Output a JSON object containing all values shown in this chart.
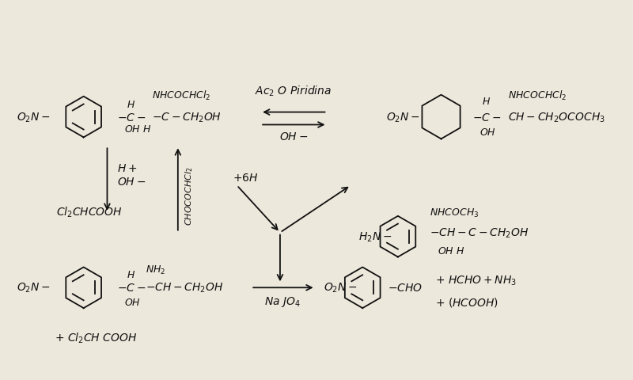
{
  "bg_color": "#ede8dc",
  "text_color": "#111111",
  "figsize": [
    8.0,
    4.81
  ],
  "dpi": 100
}
